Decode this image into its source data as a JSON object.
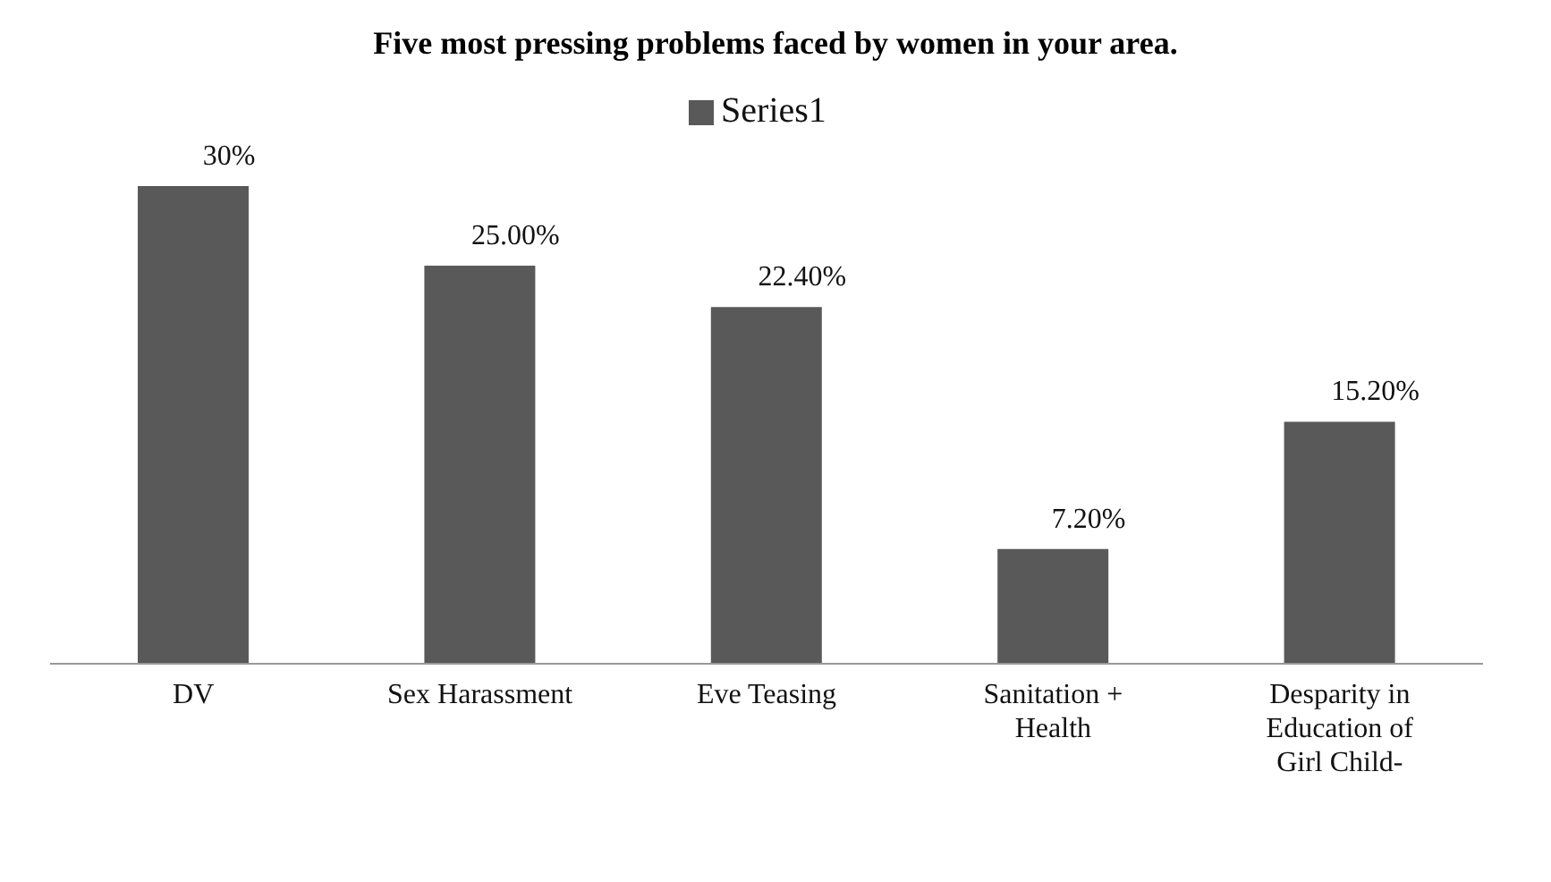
{
  "chart_data": {
    "type": "bar",
    "title": "Five most pressing problems faced by women in your area.",
    "categories": [
      "DV",
      "Sex Harassment",
      "Eve Teasing",
      "Sanitation + Health",
      "Desparity in Education of Girl Child-"
    ],
    "series": [
      {
        "name": "Series1",
        "color": "#595959",
        "values": [
          30,
          25,
          22.4,
          7.2,
          15.2
        ],
        "value_labels": [
          "30%",
          "25.00%",
          "22.40%",
          "7.20%",
          "15.20%"
        ]
      }
    ],
    "legend": "top",
    "grid": false
  }
}
